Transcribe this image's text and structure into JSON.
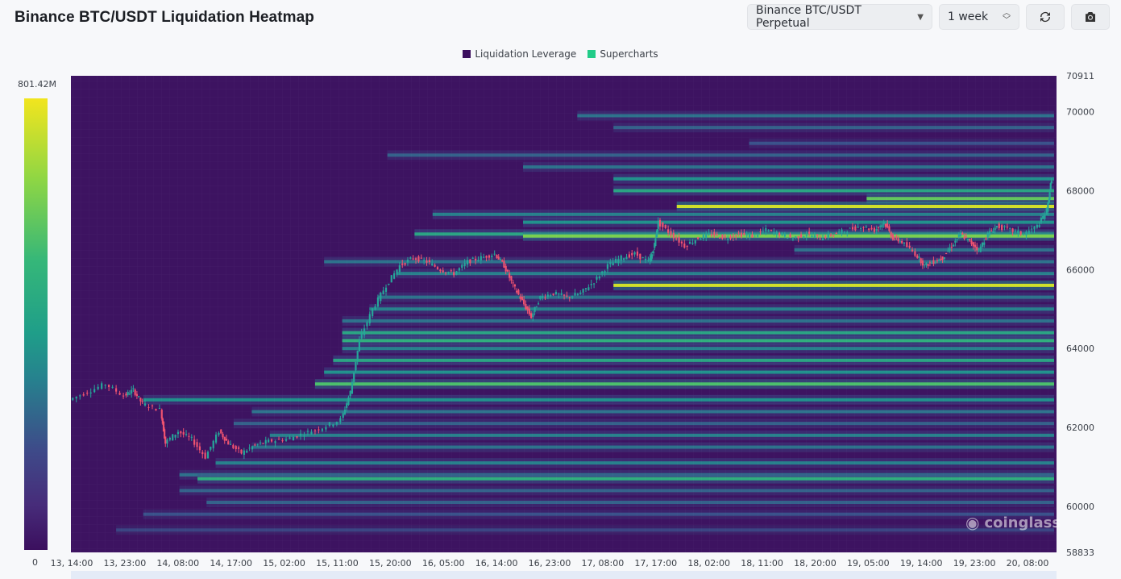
{
  "header": {
    "title": "Binance BTC/USDT Liquidation Heatmap",
    "market_select": "Binance BTC/USDT Perpetual",
    "range_select": "1 week"
  },
  "legend": [
    {
      "label": "Liquidation Leverage",
      "color": "#3b0f5e"
    },
    {
      "label": "Supercharts",
      "color": "#22cc88"
    }
  ],
  "colorbar": {
    "max_label": "801.42M",
    "min_label": "0"
  },
  "watermark": "coinglass",
  "colors": {
    "bg": "#3d1361",
    "up": "#26a69a",
    "down": "#ef5370"
  },
  "chart_data": {
    "type": "heatmap",
    "title": "Binance BTC/USDT Liquidation Heatmap",
    "ylim": [
      58833,
      70911
    ],
    "y_ticks": [
      58833,
      60000,
      62000,
      64000,
      66000,
      68000,
      70000,
      70911
    ],
    "x_ticks": [
      "13, 14:00",
      "13, 23:00",
      "14, 08:00",
      "14, 17:00",
      "15, 02:00",
      "15, 11:00",
      "15, 20:00",
      "16, 05:00",
      "16, 14:00",
      "16, 23:00",
      "17, 08:00",
      "17, 17:00",
      "18, 02:00",
      "18, 11:00",
      "18, 20:00",
      "19, 05:00",
      "19, 14:00",
      "19, 23:00",
      "20, 08:00"
    ],
    "colorbar_range": [
      0,
      801.42
    ],
    "colorbar_unit": "M",
    "price_path": [
      [
        0,
        62700
      ],
      [
        0.02,
        62900
      ],
      [
        0.04,
        63100
      ],
      [
        0.06,
        62800
      ],
      [
        0.07,
        62950
      ],
      [
        0.08,
        62600
      ],
      [
        0.1,
        62450
      ],
      [
        0.105,
        61600
      ],
      [
        0.12,
        61900
      ],
      [
        0.135,
        61700
      ],
      [
        0.15,
        61250
      ],
      [
        0.165,
        61900
      ],
      [
        0.175,
        61600
      ],
      [
        0.19,
        61350
      ],
      [
        0.205,
        61550
      ],
      [
        0.22,
        61650
      ],
      [
        0.24,
        61700
      ],
      [
        0.26,
        61850
      ],
      [
        0.28,
        62000
      ],
      [
        0.3,
        62200
      ],
      [
        0.31,
        62900
      ],
      [
        0.32,
        64200
      ],
      [
        0.335,
        65000
      ],
      [
        0.35,
        65600
      ],
      [
        0.365,
        66100
      ],
      [
        0.38,
        66300
      ],
      [
        0.395,
        66200
      ],
      [
        0.41,
        66000
      ],
      [
        0.425,
        65900
      ],
      [
        0.44,
        66200
      ],
      [
        0.455,
        66300
      ],
      [
        0.47,
        66400
      ],
      [
        0.48,
        66100
      ],
      [
        0.49,
        65600
      ],
      [
        0.5,
        65200
      ],
      [
        0.51,
        64800
      ],
      [
        0.52,
        65300
      ],
      [
        0.535,
        65400
      ],
      [
        0.55,
        65300
      ],
      [
        0.565,
        65400
      ],
      [
        0.58,
        65700
      ],
      [
        0.595,
        66100
      ],
      [
        0.61,
        66300
      ],
      [
        0.625,
        66400
      ],
      [
        0.64,
        66200
      ],
      [
        0.645,
        66500
      ],
      [
        0.65,
        67200
      ],
      [
        0.665,
        66900
      ],
      [
        0.68,
        66600
      ],
      [
        0.695,
        66800
      ],
      [
        0.71,
        66900
      ],
      [
        0.725,
        66800
      ],
      [
        0.74,
        66900
      ],
      [
        0.755,
        66850
      ],
      [
        0.77,
        67000
      ],
      [
        0.785,
        66900
      ],
      [
        0.8,
        66800
      ],
      [
        0.815,
        66900
      ],
      [
        0.83,
        66800
      ],
      [
        0.845,
        66900
      ],
      [
        0.86,
        67000
      ],
      [
        0.875,
        67100
      ],
      [
        0.89,
        67000
      ],
      [
        0.9,
        67200
      ],
      [
        0.91,
        66800
      ],
      [
        0.92,
        66700
      ],
      [
        0.935,
        66400
      ],
      [
        0.945,
        66100
      ],
      [
        0.955,
        66200
      ],
      [
        0.965,
        66300
      ],
      [
        0.975,
        66600
      ],
      [
        0.985,
        66900
      ],
      [
        0.995,
        66700
      ],
      [
        1.005,
        66500
      ],
      [
        1.015,
        66900
      ],
      [
        1.025,
        67100
      ],
      [
        1.04,
        67000
      ],
      [
        1.055,
        66900
      ],
      [
        1.07,
        67100
      ],
      [
        1.08,
        67500
      ],
      [
        1.085,
        68300
      ]
    ],
    "liquidation_bands": [
      {
        "price": 69900,
        "start": 0.56,
        "intensity": 0.35
      },
      {
        "price": 69600,
        "start": 0.6,
        "intensity": 0.3
      },
      {
        "price": 69200,
        "start": 0.75,
        "intensity": 0.25
      },
      {
        "price": 68900,
        "start": 0.35,
        "intensity": 0.3
      },
      {
        "price": 68600,
        "start": 0.5,
        "intensity": 0.35
      },
      {
        "price": 68300,
        "start": 0.6,
        "intensity": 0.45
      },
      {
        "price": 68000,
        "start": 0.6,
        "intensity": 0.55
      },
      {
        "price": 67800,
        "start": 0.88,
        "intensity": 0.75
      },
      {
        "price": 67600,
        "start": 0.67,
        "intensity": 0.95
      },
      {
        "price": 67400,
        "start": 0.4,
        "intensity": 0.4
      },
      {
        "price": 67200,
        "start": 0.5,
        "intensity": 0.45
      },
      {
        "price": 66900,
        "start": 0.38,
        "intensity": 0.55
      },
      {
        "price": 66850,
        "start": 0.5,
        "intensity": 0.8
      },
      {
        "price": 66500,
        "start": 0.8,
        "intensity": 0.35
      },
      {
        "price": 66200,
        "start": 0.28,
        "intensity": 0.35
      },
      {
        "price": 65900,
        "start": 0.36,
        "intensity": 0.4
      },
      {
        "price": 65600,
        "start": 0.6,
        "intensity": 0.95
      },
      {
        "price": 65300,
        "start": 0.34,
        "intensity": 0.35
      },
      {
        "price": 65000,
        "start": 0.33,
        "intensity": 0.4
      },
      {
        "price": 64700,
        "start": 0.3,
        "intensity": 0.35
      },
      {
        "price": 64400,
        "start": 0.3,
        "intensity": 0.55
      },
      {
        "price": 64200,
        "start": 0.3,
        "intensity": 0.6
      },
      {
        "price": 64000,
        "start": 0.3,
        "intensity": 0.4
      },
      {
        "price": 63700,
        "start": 0.29,
        "intensity": 0.55
      },
      {
        "price": 63400,
        "start": 0.28,
        "intensity": 0.45
      },
      {
        "price": 63100,
        "start": 0.27,
        "intensity": 0.7
      },
      {
        "price": 62700,
        "start": 0.08,
        "intensity": 0.45
      },
      {
        "price": 62400,
        "start": 0.2,
        "intensity": 0.35
      },
      {
        "price": 62100,
        "start": 0.18,
        "intensity": 0.3
      },
      {
        "price": 61800,
        "start": 0.22,
        "intensity": 0.4
      },
      {
        "price": 61500,
        "start": 0.2,
        "intensity": 0.35
      },
      {
        "price": 61100,
        "start": 0.16,
        "intensity": 0.4
      },
      {
        "price": 60800,
        "start": 0.12,
        "intensity": 0.35
      },
      {
        "price": 60700,
        "start": 0.14,
        "intensity": 0.6
      },
      {
        "price": 60400,
        "start": 0.12,
        "intensity": 0.3
      },
      {
        "price": 60100,
        "start": 0.15,
        "intensity": 0.3
      },
      {
        "price": 59800,
        "start": 0.08,
        "intensity": 0.25
      },
      {
        "price": 59400,
        "start": 0.05,
        "intensity": 0.2
      }
    ]
  }
}
